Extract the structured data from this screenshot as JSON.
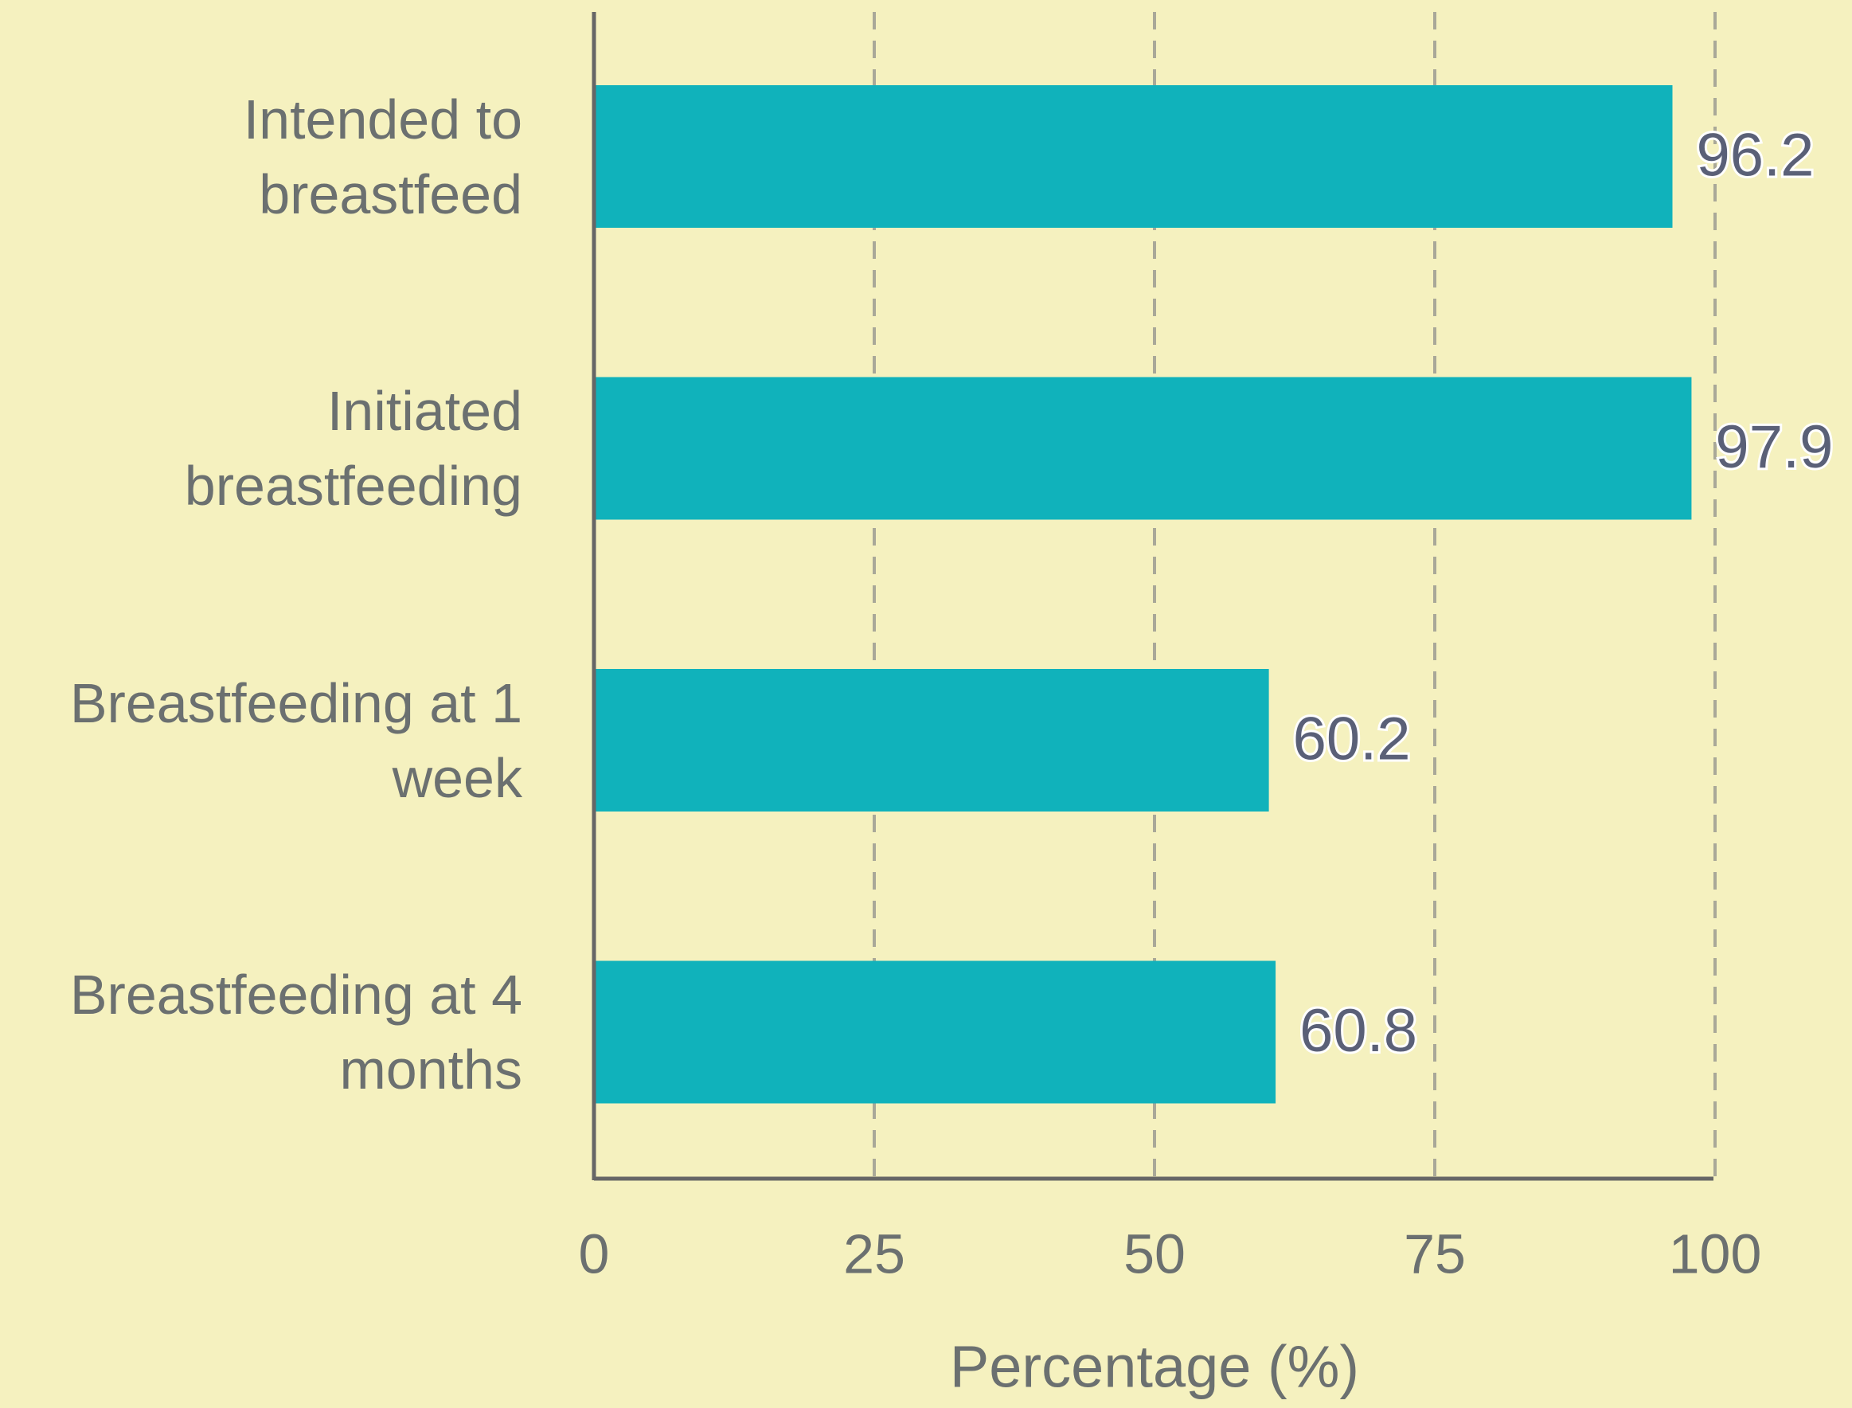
{
  "chart_data": {
    "type": "bar",
    "orientation": "horizontal",
    "categories": [
      "Intended to breastfeed",
      "Initiated breastfeeding",
      "Breastfeeding at 1 week",
      "Breastfeeding at 4 months"
    ],
    "values": [
      96.2,
      97.9,
      60.2,
      60.8
    ],
    "color": "#10b2bb",
    "xlabel": "Percentage (%)",
    "xlim": [
      0,
      100
    ],
    "xticks": [
      0,
      25,
      50,
      75,
      100
    ],
    "grid": true
  }
}
